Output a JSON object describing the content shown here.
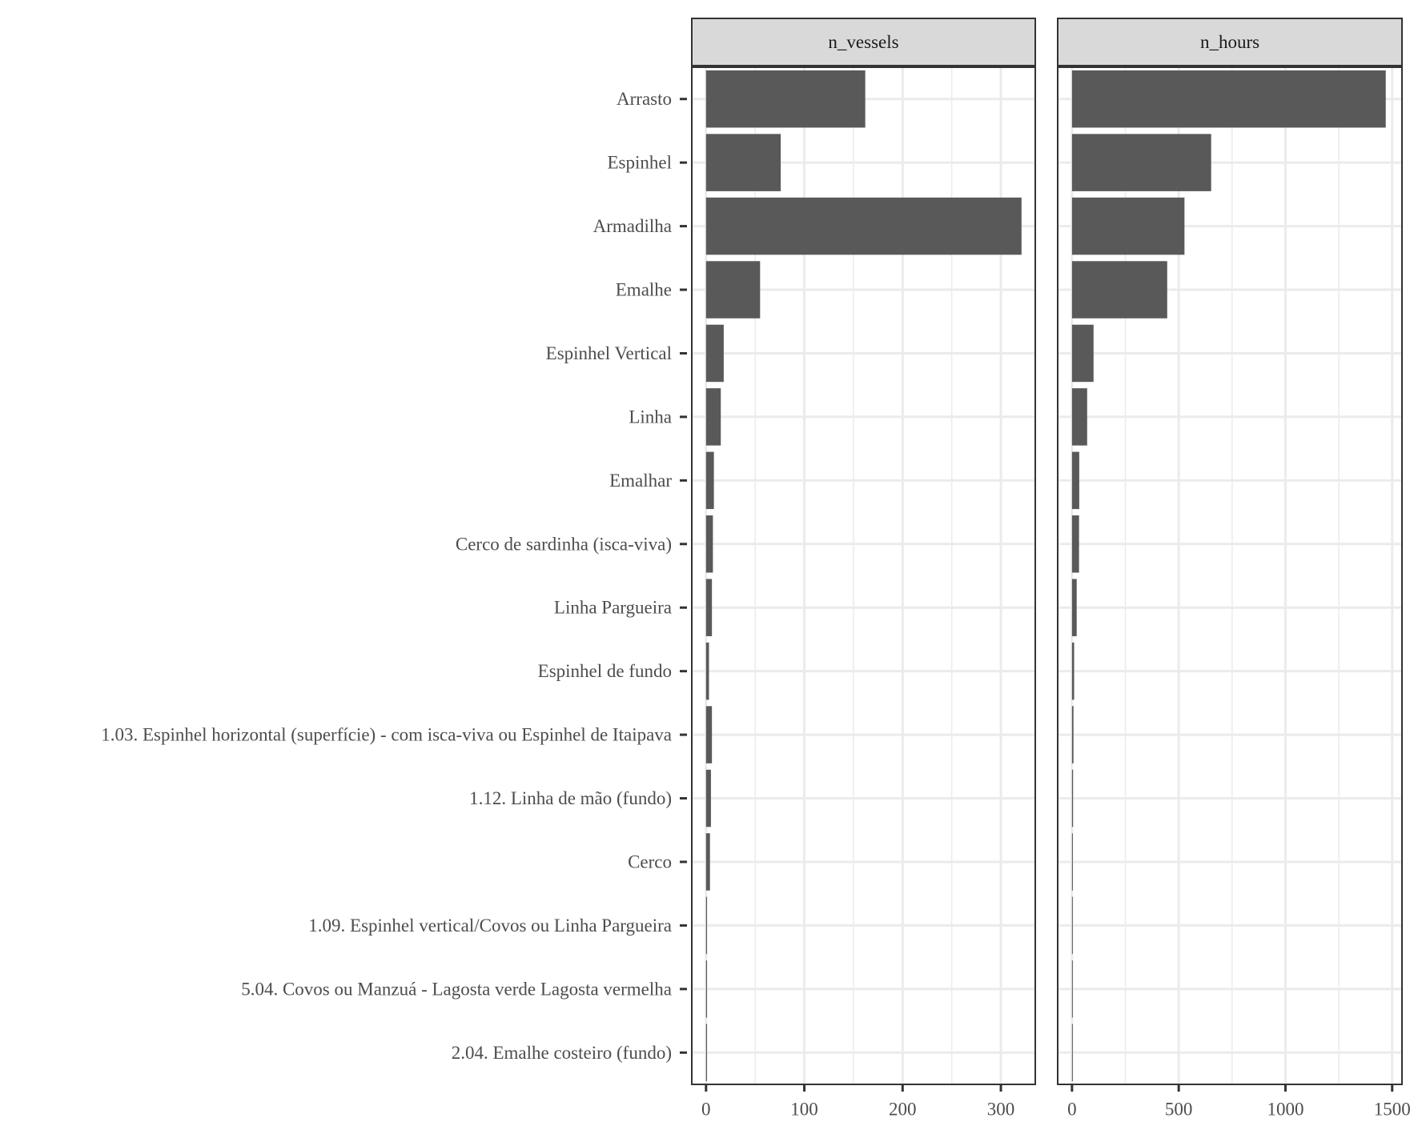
{
  "chart_data": {
    "type": "bar",
    "orientation": "horizontal",
    "categories": [
      "Arrasto",
      "Espinhel",
      "Armadilha",
      "Emalhe",
      "Espinhel Vertical",
      "Linha",
      "Emalhar",
      "Cerco de sardinha (isca-viva)",
      "Linha Pargueira",
      "Espinhel de fundo",
      "1.03. Espinhel horizontal (superfície) - com isca-viva ou Espinhel de Itaipava",
      "1.12. Linha de mão (fundo)",
      "Cerco",
      "1.09. Espinhel vertical/Covos ou Linha Pargueira",
      "5.04. Covos ou Manzuá - Lagosta verde Lagosta vermelha",
      "2.04. Emalhe costeiro (fundo)"
    ],
    "panels": [
      {
        "name": "n_vessels",
        "values": [
          162,
          76,
          321,
          55,
          18,
          15,
          8,
          7,
          6,
          3,
          6,
          5,
          4,
          1,
          1,
          1
        ],
        "xlim": [
          -14.5,
          335
        ],
        "ticks": [
          0,
          100,
          200,
          300
        ],
        "tick_labels": [
          "0",
          "100",
          "200",
          "300"
        ],
        "minor_ticks": [
          50,
          150,
          250
        ]
      },
      {
        "name": "n_hours",
        "values": [
          1470,
          652,
          527,
          446,
          101,
          71,
          34,
          33,
          22,
          10,
          7,
          5,
          4,
          3,
          0,
          0
        ],
        "xlim": [
          -67,
          1546
        ],
        "ticks": [
          0,
          500,
          1000,
          1500
        ],
        "tick_labels": [
          "0",
          "500",
          "1000",
          "1500"
        ],
        "minor_ticks": [
          250,
          750,
          1250
        ]
      }
    ],
    "title": "",
    "xlabel": "",
    "ylabel": "",
    "grid": true,
    "bar_color": "#595959",
    "grid_color": "#ebebeb",
    "strip_color": "#d9d9d9",
    "frame_color": "#333333",
    "text_color": "#4d4d4d"
  }
}
